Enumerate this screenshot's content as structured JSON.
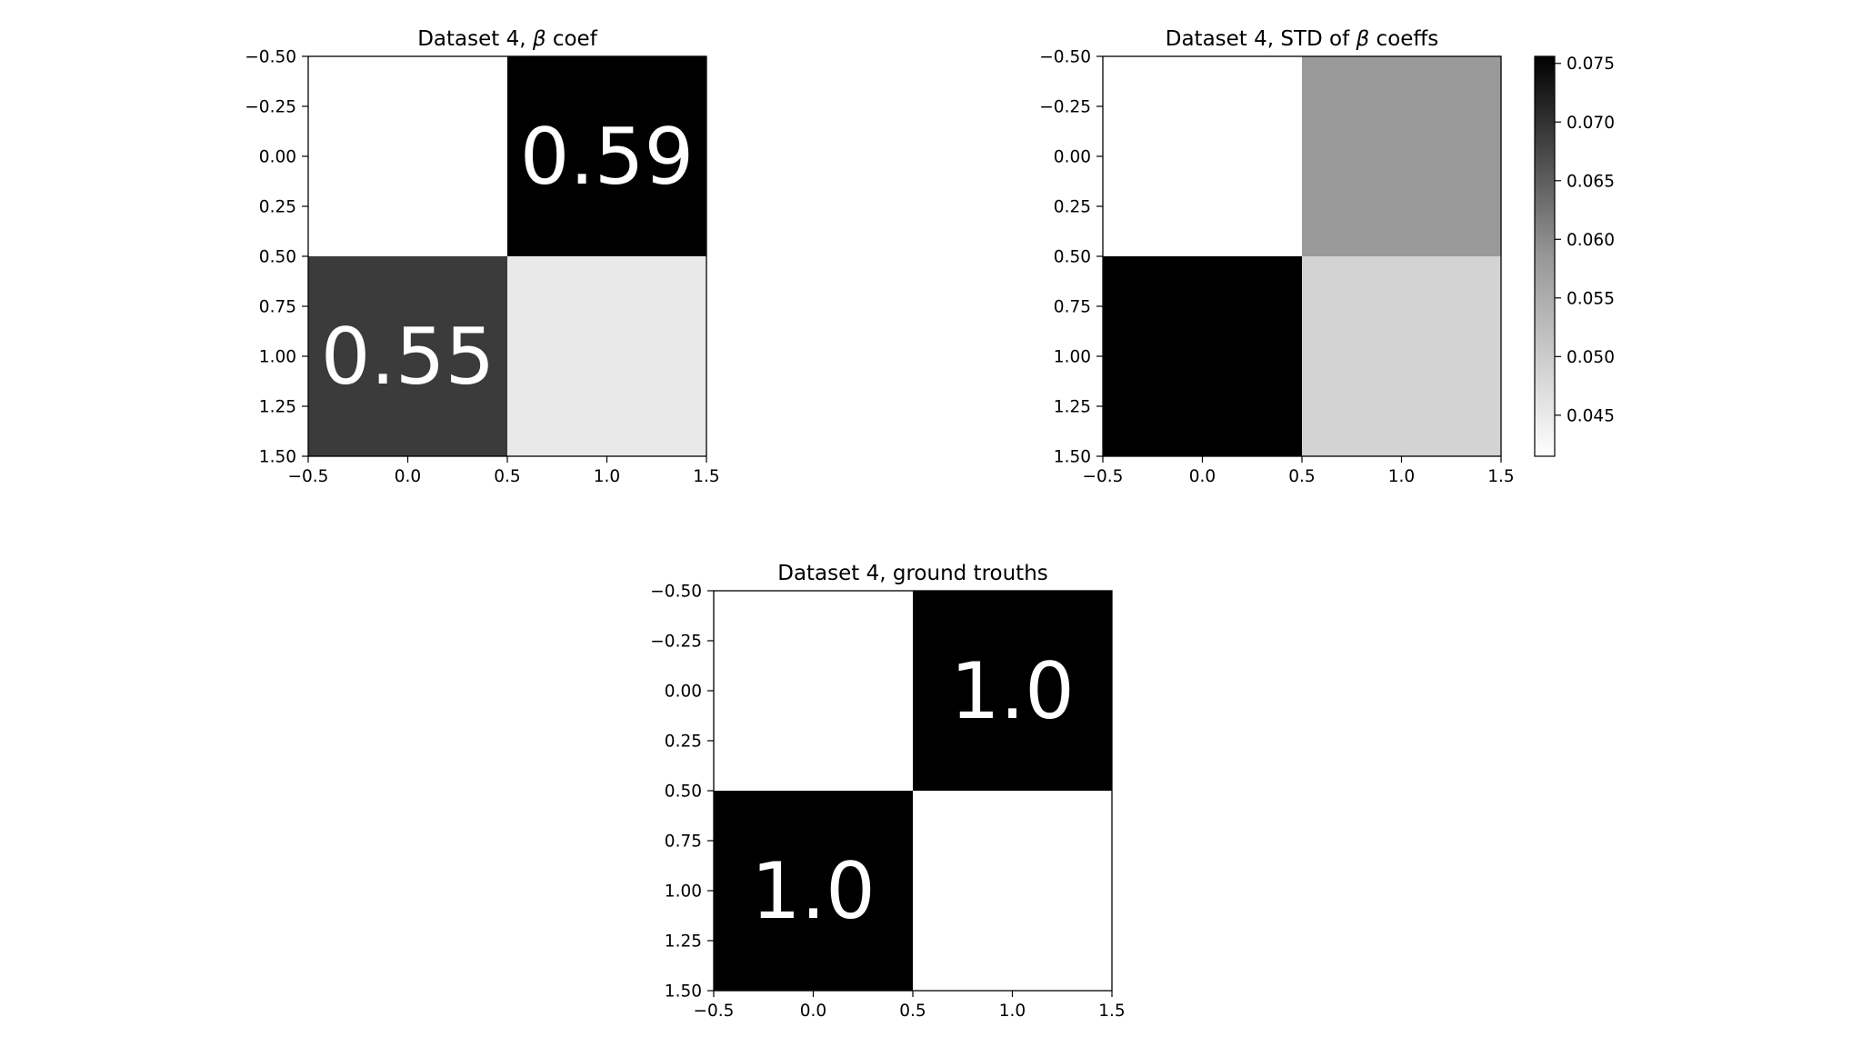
{
  "chart_data": [
    {
      "type": "heatmap",
      "title": "Dataset 4, β coef",
      "title_prefix": "Dataset 4, ",
      "title_greek": "β",
      "title_suffix": " coef",
      "xlabel": "",
      "ylabel": "",
      "xlim": [
        -0.5,
        1.5
      ],
      "ylim": [
        1.5,
        -0.5
      ],
      "xticks": [
        -0.5,
        0.0,
        0.5,
        1.0,
        1.5
      ],
      "xtick_labels": [
        "−0.5",
        "0.0",
        "0.5",
        "1.0",
        "1.5"
      ],
      "yticks": [
        -0.5,
        -0.25,
        0.0,
        0.25,
        0.5,
        0.75,
        1.0,
        1.25,
        1.5
      ],
      "ytick_labels": [
        "−0.50",
        "−0.25",
        "0.00",
        "0.25",
        "0.50",
        "0.75",
        "1.00",
        "1.25",
        "1.50"
      ],
      "cells": [
        {
          "row": 0,
          "col": 0,
          "gray": "#ffffff",
          "label": ""
        },
        {
          "row": 0,
          "col": 1,
          "gray": "#000000",
          "label": "0.59"
        },
        {
          "row": 1,
          "col": 0,
          "gray": "#3b3b3b",
          "label": "0.55"
        },
        {
          "row": 1,
          "col": 1,
          "gray": "#e9e9e9",
          "label": ""
        }
      ],
      "annotation_color": "#ffffff"
    },
    {
      "type": "heatmap",
      "title": "Dataset 4, STD of β coeffs",
      "title_prefix": "Dataset 4, STD of ",
      "title_greek": "β",
      "title_suffix": " coeffs",
      "xlabel": "",
      "ylabel": "",
      "xlim": [
        -0.5,
        1.5
      ],
      "ylim": [
        1.5,
        -0.5
      ],
      "xticks": [
        -0.5,
        0.0,
        0.5,
        1.0,
        1.5
      ],
      "xtick_labels": [
        "−0.5",
        "0.0",
        "0.5",
        "1.0",
        "1.5"
      ],
      "yticks": [
        -0.5,
        -0.25,
        0.0,
        0.25,
        0.5,
        0.75,
        1.0,
        1.25,
        1.5
      ],
      "ytick_labels": [
        "−0.50",
        "−0.25",
        "0.00",
        "0.25",
        "0.50",
        "0.75",
        "1.00",
        "1.25",
        "1.50"
      ],
      "cells": [
        {
          "row": 0,
          "col": 0,
          "gray": "#ffffff",
          "label": ""
        },
        {
          "row": 0,
          "col": 1,
          "gray": "#9a9a9a",
          "label": ""
        },
        {
          "row": 1,
          "col": 0,
          "gray": "#000000",
          "label": ""
        },
        {
          "row": 1,
          "col": 1,
          "gray": "#d3d3d3",
          "label": ""
        }
      ],
      "colorbar": {
        "range": [
          0.0415,
          0.0756
        ],
        "ticks": [
          0.075,
          0.07,
          0.065,
          0.06,
          0.055,
          0.05,
          0.045
        ],
        "tick_labels": [
          "0.075",
          "0.070",
          "0.065",
          "0.060",
          "0.055",
          "0.050",
          "0.045"
        ],
        "colormap": "Greys"
      }
    },
    {
      "type": "heatmap",
      "title": "Dataset 4, ground trouths",
      "title_prefix": "Dataset 4, ground trouths",
      "title_greek": "",
      "title_suffix": "",
      "xlabel": "",
      "ylabel": "",
      "xlim": [
        -0.5,
        1.5
      ],
      "ylim": [
        1.5,
        -0.5
      ],
      "xticks": [
        -0.5,
        0.0,
        0.5,
        1.0,
        1.5
      ],
      "xtick_labels": [
        "−0.5",
        "0.0",
        "0.5",
        "1.0",
        "1.5"
      ],
      "yticks": [
        -0.5,
        -0.25,
        0.0,
        0.25,
        0.5,
        0.75,
        1.0,
        1.25,
        1.5
      ],
      "ytick_labels": [
        "−0.50",
        "−0.25",
        "0.00",
        "0.25",
        "0.50",
        "0.75",
        "1.00",
        "1.25",
        "1.50"
      ],
      "cells": [
        {
          "row": 0,
          "col": 0,
          "gray": "#ffffff",
          "label": ""
        },
        {
          "row": 0,
          "col": 1,
          "gray": "#000000",
          "label": "1.0"
        },
        {
          "row": 1,
          "col": 0,
          "gray": "#000000",
          "label": "1.0"
        },
        {
          "row": 1,
          "col": 1,
          "gray": "#ffffff",
          "label": ""
        }
      ],
      "annotation_color": "#ffffff"
    }
  ]
}
